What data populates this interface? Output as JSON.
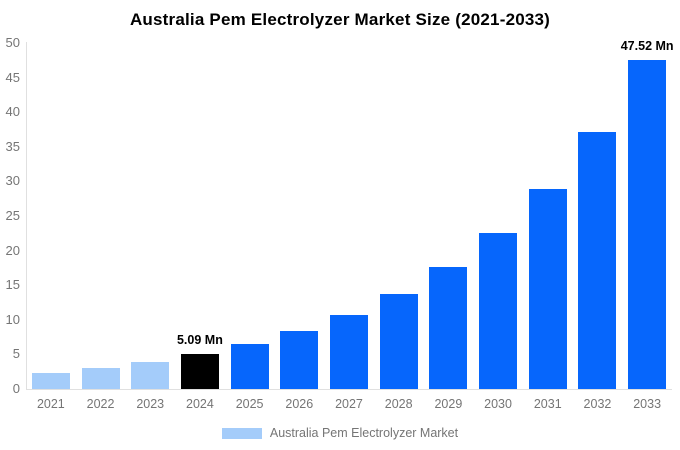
{
  "title": "Australia Pem Electrolyzer Market Size (2021-2033)",
  "chart_data": {
    "type": "bar",
    "title": "Australia Pem Electrolyzer Market Size (2021-2033)",
    "categories": [
      "2021",
      "2022",
      "2023",
      "2024",
      "2025",
      "2026",
      "2027",
      "2028",
      "2029",
      "2030",
      "2031",
      "2032",
      "2033"
    ],
    "values": [
      2.35,
      3.02,
      3.9,
      5.09,
      6.52,
      8.36,
      10.72,
      13.74,
      17.61,
      22.57,
      28.93,
      37.08,
      47.52
    ],
    "unit": "Mn",
    "annotations": [
      null,
      null,
      null,
      "5.09 Mn",
      null,
      null,
      null,
      null,
      null,
      null,
      null,
      null,
      "47.52 Mn"
    ],
    "bar_colors": [
      "#A4CCFA",
      "#A4CCFA",
      "#A4CCFA",
      "#000000",
      "#0666FC",
      "#0666FC",
      "#0666FC",
      "#0666FC",
      "#0666FC",
      "#0666FC",
      "#0666FC",
      "#0666FC",
      "#0666FC"
    ],
    "xlabel": "",
    "ylabel": "",
    "ylim": [
      0,
      50
    ],
    "yticks": [
      0,
      5,
      10,
      15,
      20,
      25,
      30,
      35,
      40,
      45,
      50
    ],
    "grid": false,
    "legend_position": "bottom"
  },
  "legend": {
    "swatch_color": "#A4CCFA",
    "label": "Australia Pem Electrolyzer Market"
  },
  "colors": {
    "axis_line": "#E0E0E0",
    "tick_text": "#757575",
    "title_text": "#000000",
    "annotation_text": "#000000",
    "background": "#FFFFFF"
  }
}
